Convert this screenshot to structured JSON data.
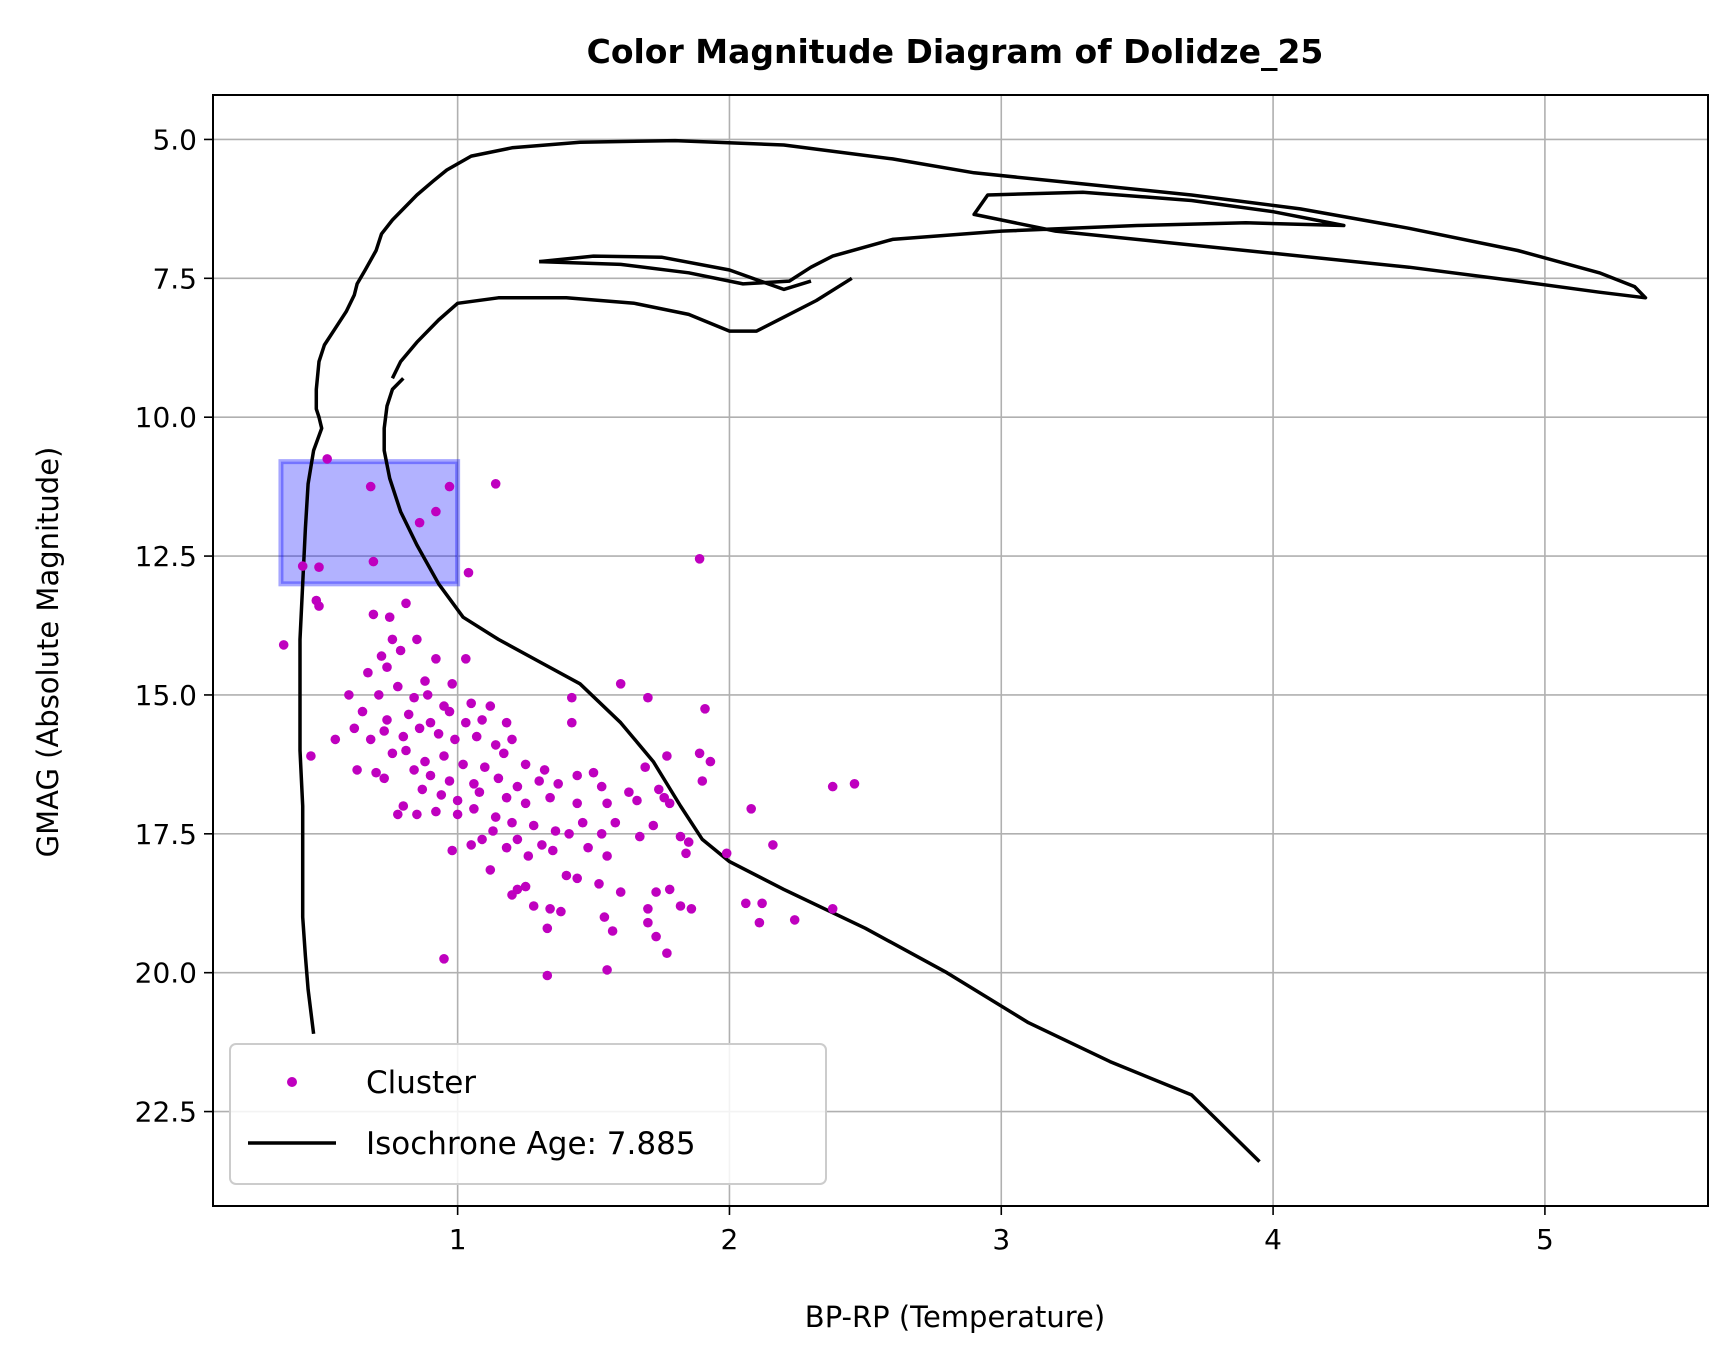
{
  "chart_data": {
    "type": "scatter",
    "title": "Color Magnitude Diagram of Dolidze_25",
    "xlabel": "BP-RP (Temperature)",
    "ylabel": "GMAG (Absolute Magnitude)",
    "xlim": [
      0.1,
      5.6
    ],
    "ylim": [
      24.2,
      4.2
    ],
    "y_inverted": true,
    "grid": true,
    "x_ticks": [
      1,
      2,
      3,
      4,
      5
    ],
    "x_tick_labels": [
      "1",
      "2",
      "3",
      "4",
      "5"
    ],
    "y_ticks": [
      5.0,
      7.5,
      10.0,
      12.5,
      15.0,
      17.5,
      20.0,
      22.5
    ],
    "y_tick_labels": [
      "5.0",
      "7.5",
      "10.0",
      "12.5",
      "15.0",
      "17.5",
      "20.0",
      "22.5"
    ],
    "legend_position": "lower-left",
    "colors": {
      "cluster": "#bf00bf",
      "isochrone": "#000000",
      "highlight": "#0000ff"
    },
    "highlight_region": {
      "x0": 0.35,
      "x1": 1.0,
      "y0": 10.8,
      "y1": 13.0
    },
    "series": [
      {
        "name": "Cluster",
        "kind": "scatter",
        "points": [
          [
            0.52,
            10.75
          ],
          [
            0.68,
            11.25
          ],
          [
            0.97,
            11.25
          ],
          [
            1.14,
            11.2
          ],
          [
            0.92,
            11.7
          ],
          [
            0.86,
            11.9
          ],
          [
            0.69,
            12.6
          ],
          [
            0.43,
            12.68
          ],
          [
            0.49,
            12.7
          ],
          [
            1.04,
            12.8
          ],
          [
            1.89,
            12.55
          ],
          [
            0.48,
            13.3
          ],
          [
            0.49,
            13.4
          ],
          [
            0.69,
            13.55
          ],
          [
            0.75,
            13.6
          ],
          [
            0.81,
            13.35
          ],
          [
            0.36,
            14.1
          ],
          [
            0.76,
            14.0
          ],
          [
            0.72,
            14.3
          ],
          [
            0.85,
            14.0
          ],
          [
            0.79,
            14.2
          ],
          [
            0.92,
            14.35
          ],
          [
            1.03,
            14.35
          ],
          [
            0.67,
            14.6
          ],
          [
            0.74,
            14.5
          ],
          [
            0.88,
            14.75
          ],
          [
            0.98,
            14.8
          ],
          [
            1.6,
            14.8
          ],
          [
            0.6,
            15.0
          ],
          [
            0.71,
            15.0
          ],
          [
            0.78,
            14.85
          ],
          [
            0.84,
            15.05
          ],
          [
            0.89,
            15.0
          ],
          [
            0.95,
            15.2
          ],
          [
            1.05,
            15.15
          ],
          [
            1.12,
            15.2
          ],
          [
            1.42,
            15.05
          ],
          [
            1.7,
            15.05
          ],
          [
            1.91,
            15.25
          ],
          [
            0.65,
            15.3
          ],
          [
            0.74,
            15.45
          ],
          [
            0.82,
            15.35
          ],
          [
            0.9,
            15.5
          ],
          [
            0.97,
            15.3
          ],
          [
            1.03,
            15.5
          ],
          [
            1.09,
            15.45
          ],
          [
            1.18,
            15.5
          ],
          [
            0.62,
            15.6
          ],
          [
            0.68,
            15.8
          ],
          [
            0.73,
            15.65
          ],
          [
            0.8,
            15.75
          ],
          [
            0.86,
            15.6
          ],
          [
            0.93,
            15.7
          ],
          [
            0.99,
            15.8
          ],
          [
            1.07,
            15.75
          ],
          [
            1.14,
            15.9
          ],
          [
            1.2,
            15.8
          ],
          [
            1.42,
            15.5
          ],
          [
            0.55,
            15.8
          ],
          [
            0.46,
            16.1
          ],
          [
            0.76,
            16.05
          ],
          [
            0.81,
            16.0
          ],
          [
            0.88,
            16.2
          ],
          [
            0.95,
            16.1
          ],
          [
            1.02,
            16.25
          ],
          [
            1.1,
            16.3
          ],
          [
            1.17,
            16.05
          ],
          [
            1.25,
            16.25
          ],
          [
            1.32,
            16.35
          ],
          [
            1.44,
            16.45
          ],
          [
            1.5,
            16.4
          ],
          [
            1.69,
            16.3
          ],
          [
            1.77,
            16.1
          ],
          [
            1.89,
            16.05
          ],
          [
            1.93,
            16.2
          ],
          [
            0.63,
            16.35
          ],
          [
            0.7,
            16.4
          ],
          [
            0.84,
            16.35
          ],
          [
            0.9,
            16.45
          ],
          [
            0.97,
            16.55
          ],
          [
            1.06,
            16.6
          ],
          [
            1.15,
            16.5
          ],
          [
            1.22,
            16.65
          ],
          [
            1.3,
            16.55
          ],
          [
            1.37,
            16.6
          ],
          [
            1.53,
            16.65
          ],
          [
            1.63,
            16.75
          ],
          [
            1.74,
            16.7
          ],
          [
            1.9,
            16.55
          ],
          [
            2.38,
            16.65
          ],
          [
            2.46,
            16.6
          ],
          [
            0.73,
            16.5
          ],
          [
            0.87,
            16.7
          ],
          [
            0.94,
            16.8
          ],
          [
            1.0,
            16.9
          ],
          [
            1.08,
            16.75
          ],
          [
            1.18,
            16.85
          ],
          [
            1.25,
            16.95
          ],
          [
            1.34,
            16.85
          ],
          [
            1.44,
            16.95
          ],
          [
            1.55,
            16.95
          ],
          [
            1.66,
            16.9
          ],
          [
            1.76,
            16.85
          ],
          [
            1.78,
            16.95
          ],
          [
            2.08,
            17.05
          ],
          [
            0.8,
            17.0
          ],
          [
            0.85,
            17.15
          ],
          [
            0.92,
            17.1
          ],
          [
            1.0,
            17.15
          ],
          [
            1.06,
            17.05
          ],
          [
            1.14,
            17.2
          ],
          [
            1.2,
            17.3
          ],
          [
            1.28,
            17.35
          ],
          [
            1.36,
            17.45
          ],
          [
            1.46,
            17.3
          ],
          [
            1.58,
            17.3
          ],
          [
            1.72,
            17.35
          ],
          [
            0.78,
            17.15
          ],
          [
            1.09,
            17.6
          ],
          [
            1.13,
            17.45
          ],
          [
            1.22,
            17.6
          ],
          [
            1.31,
            17.7
          ],
          [
            1.41,
            17.5
          ],
          [
            1.53,
            17.5
          ],
          [
            1.67,
            17.55
          ],
          [
            1.82,
            17.55
          ],
          [
            1.85,
            17.65
          ],
          [
            2.16,
            17.7
          ],
          [
            0.98,
            17.8
          ],
          [
            1.05,
            17.7
          ],
          [
            1.18,
            17.75
          ],
          [
            1.26,
            17.9
          ],
          [
            1.35,
            17.8
          ],
          [
            1.48,
            17.75
          ],
          [
            1.55,
            17.9
          ],
          [
            1.84,
            17.85
          ],
          [
            1.99,
            17.85
          ],
          [
            1.12,
            18.15
          ],
          [
            1.4,
            18.25
          ],
          [
            1.44,
            18.3
          ],
          [
            1.52,
            18.4
          ],
          [
            1.6,
            18.55
          ],
          [
            1.73,
            18.55
          ],
          [
            1.78,
            18.5
          ],
          [
            1.22,
            18.5
          ],
          [
            1.25,
            18.45
          ],
          [
            1.2,
            18.6
          ],
          [
            1.82,
            18.8
          ],
          [
            1.86,
            18.85
          ],
          [
            2.06,
            18.75
          ],
          [
            2.12,
            18.75
          ],
          [
            1.28,
            18.8
          ],
          [
            1.34,
            18.85
          ],
          [
            1.38,
            18.9
          ],
          [
            1.54,
            19.0
          ],
          [
            1.7,
            18.85
          ],
          [
            1.7,
            19.1
          ],
          [
            1.33,
            19.2
          ],
          [
            1.57,
            19.25
          ],
          [
            1.73,
            19.35
          ],
          [
            2.11,
            19.1
          ],
          [
            2.24,
            19.05
          ],
          [
            2.38,
            18.85
          ],
          [
            1.77,
            19.65
          ],
          [
            1.55,
            19.95
          ],
          [
            1.33,
            20.05
          ],
          [
            0.95,
            19.75
          ]
        ]
      },
      {
        "name": "Isochrone Age: 7.885",
        "kind": "line",
        "segments": [
          [
            [
              0.47,
              21.1
            ],
            [
              0.45,
              20.3
            ],
            [
              0.44,
              19.7
            ],
            [
              0.43,
              19.0
            ],
            [
              0.43,
              18.0
            ],
            [
              0.43,
              17.0
            ],
            [
              0.42,
              16.0
            ],
            [
              0.42,
              15.0
            ],
            [
              0.42,
              14.0
            ],
            [
              0.43,
              13.0
            ],
            [
              0.44,
              12.0
            ],
            [
              0.45,
              11.2
            ],
            [
              0.47,
              10.6
            ],
            [
              0.5,
              10.2
            ],
            [
              0.49,
              10.0
            ],
            [
              0.48,
              9.85
            ],
            [
              0.48,
              9.5
            ],
            [
              0.49,
              9.0
            ],
            [
              0.51,
              8.7
            ],
            [
              0.55,
              8.4
            ],
            [
              0.59,
              8.1
            ],
            [
              0.62,
              7.8
            ],
            [
              0.63,
              7.6
            ],
            [
              0.66,
              7.35
            ],
            [
              0.7,
              7.0
            ],
            [
              0.72,
              6.7
            ],
            [
              0.76,
              6.45
            ],
            [
              0.8,
              6.25
            ],
            [
              0.85,
              6.0
            ],
            [
              0.91,
              5.75
            ],
            [
              0.96,
              5.55
            ],
            [
              1.05,
              5.3
            ],
            [
              1.2,
              5.15
            ],
            [
              1.45,
              5.05
            ],
            [
              1.8,
              5.02
            ],
            [
              2.2,
              5.1
            ],
            [
              2.6,
              5.35
            ],
            [
              2.9,
              5.6
            ],
            [
              3.3,
              5.8
            ],
            [
              3.7,
              6.0
            ],
            [
              4.1,
              6.25
            ],
            [
              4.5,
              6.6
            ],
            [
              4.9,
              7.0
            ],
            [
              5.2,
              7.4
            ],
            [
              5.33,
              7.65
            ],
            [
              5.37,
              7.85
            ],
            [
              5.2,
              7.75
            ],
            [
              4.9,
              7.55
            ],
            [
              4.5,
              7.3
            ],
            [
              4.0,
              7.05
            ],
            [
              3.6,
              6.85
            ],
            [
              3.2,
              6.65
            ],
            [
              2.9,
              6.35
            ],
            [
              2.95,
              6.0
            ],
            [
              3.3,
              5.95
            ],
            [
              3.7,
              6.1
            ],
            [
              4.0,
              6.3
            ],
            [
              4.26,
              6.55
            ],
            [
              3.9,
              6.5
            ],
            [
              3.5,
              6.55
            ],
            [
              3.0,
              6.65
            ],
            [
              2.6,
              6.8
            ],
            [
              2.38,
              7.1
            ],
            [
              2.3,
              7.3
            ],
            [
              2.22,
              7.55
            ],
            [
              2.05,
              7.6
            ],
            [
              1.85,
              7.4
            ],
            [
              1.6,
              7.25
            ],
            [
              1.3,
              7.2
            ]
          ],
          [
            [
              0.47,
              21.1
            ]
          ],
          [
            [
              0.8,
              9.3
            ],
            [
              0.76,
              9.5
            ],
            [
              0.74,
              9.8
            ],
            [
              0.73,
              10.2
            ],
            [
              0.73,
              10.6
            ],
            [
              0.75,
              11.1
            ],
            [
              0.79,
              11.7
            ],
            [
              0.85,
              12.3
            ],
            [
              0.93,
              13.0
            ],
            [
              1.02,
              13.6
            ],
            [
              1.15,
              14.0
            ],
            [
              1.3,
              14.4
            ],
            [
              1.45,
              14.8
            ],
            [
              1.6,
              15.5
            ],
            [
              1.72,
              16.2
            ],
            [
              1.82,
              17.0
            ],
            [
              1.9,
              17.6
            ],
            [
              2.0,
              18.0
            ],
            [
              2.2,
              18.5
            ],
            [
              2.5,
              19.2
            ],
            [
              2.8,
              20.0
            ],
            [
              3.1,
              20.9
            ],
            [
              3.4,
              21.6
            ],
            [
              3.7,
              22.2
            ],
            [
              3.95,
              23.4
            ]
          ],
          [
            [
              0.76,
              9.3
            ],
            [
              0.79,
              9.0
            ],
            [
              0.85,
              8.65
            ],
            [
              0.93,
              8.25
            ],
            [
              1.0,
              7.95
            ],
            [
              1.15,
              7.85
            ],
            [
              1.4,
              7.85
            ],
            [
              1.65,
              7.95
            ],
            [
              1.85,
              8.15
            ],
            [
              2.0,
              8.45
            ],
            [
              2.1,
              8.45
            ],
            [
              2.2,
              8.2
            ],
            [
              2.32,
              7.9
            ],
            [
              2.45,
              7.5
            ]
          ],
          [
            [
              1.3,
              7.2
            ],
            [
              1.5,
              7.1
            ],
            [
              1.75,
              7.12
            ],
            [
              2.0,
              7.35
            ],
            [
              2.2,
              7.7
            ],
            [
              2.3,
              7.55
            ]
          ]
        ]
      }
    ]
  }
}
